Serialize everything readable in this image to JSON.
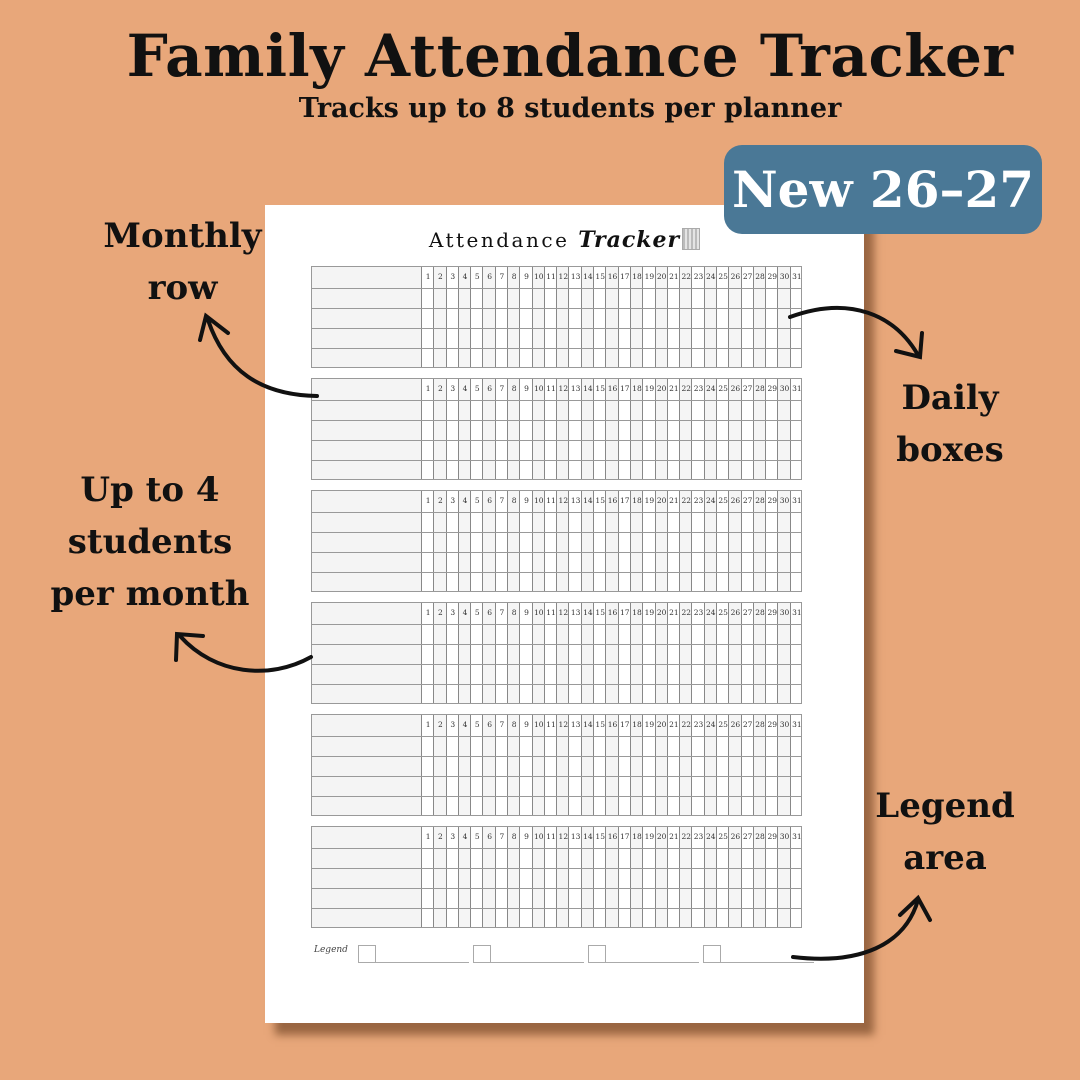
{
  "header": {
    "title": "Family Attendance Tracker",
    "subtitle": "Tracks up to 8 students per planner"
  },
  "badge": {
    "label": "New 26–27",
    "color": "#4a7896"
  },
  "background_color": "#e8a77a",
  "planner": {
    "title_plain": "Attendance",
    "title_script": "Tracker",
    "title_icon": "calculator-icon",
    "month_blocks": 6,
    "student_rows_per_block": 4,
    "days": [
      1,
      2,
      3,
      4,
      5,
      6,
      7,
      8,
      9,
      10,
      11,
      12,
      13,
      14,
      15,
      16,
      17,
      18,
      19,
      20,
      21,
      22,
      23,
      24,
      25,
      26,
      27,
      28,
      29,
      30,
      31
    ],
    "legend_label": "Legend",
    "legend_slots": 4
  },
  "callouts": {
    "monthly_row": "Monthly row",
    "daily_boxes": "Daily boxes",
    "students": "Up to 4 students per month",
    "legend_area": "Legend area"
  }
}
